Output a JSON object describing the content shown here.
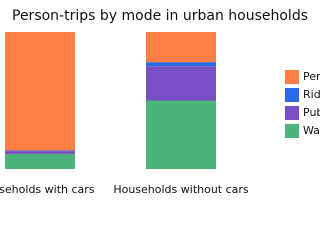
{
  "chart_data": {
    "type": "stacked_bar",
    "title": "Person-trips by mode in urban households",
    "categories": [
      "ouseholds with cars",
      "Households without cars"
    ],
    "ylim": [
      0,
      100
    ],
    "series": [
      {
        "name": "Wa",
        "color": "#4cb37a",
        "values": [
          11,
          50
        ]
      },
      {
        "name": "Pub",
        "color": "#7b4fc4",
        "values": [
          2,
          25
        ]
      },
      {
        "name": "Ride",
        "color": "#2a6ae8",
        "values": [
          0.5,
          3
        ]
      },
      {
        "name": "Pers",
        "color": "#ff7f45",
        "values": [
          86.5,
          22
        ]
      }
    ]
  }
}
